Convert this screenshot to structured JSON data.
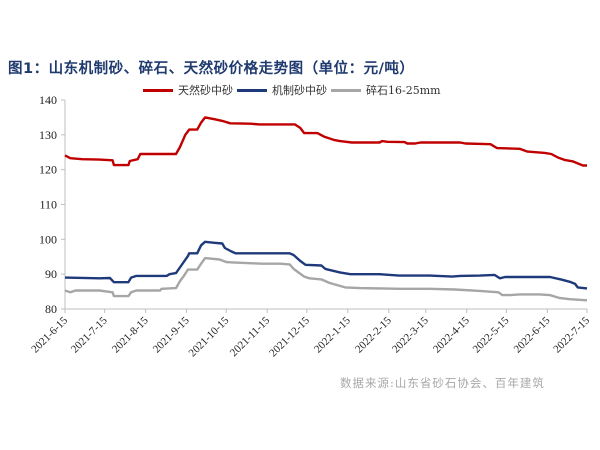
{
  "title": "图1：山东机制砂、碎石、天然砂价格走势图（单位：元/吨）",
  "source": "数据来源:山东省砂石协会、百年建筑",
  "colors": {
    "title": "#1f3a6e",
    "natural_sand": "#c00000",
    "machine_sand": "#1f3a7a",
    "gravel": "#a6a6a6",
    "axis": "#bfbfbf"
  },
  "legend": [
    {
      "label": "天然砂中砂",
      "color": "#c00000"
    },
    {
      "label": "机制砂中砂",
      "color": "#1f3a7a"
    },
    {
      "label": "碎石16-25mm",
      "color": "#a6a6a6"
    }
  ],
  "chart_data": {
    "type": "line",
    "title": "图1：山东机制砂、碎石、天然砂价格走势图（单位：元/吨）",
    "xlabel": "",
    "ylabel": "元/吨",
    "ylim": [
      80,
      140
    ],
    "yticks": [
      80,
      90,
      100,
      110,
      120,
      130,
      140
    ],
    "grid": false,
    "legend_position": "top",
    "x_start": "2021-6-15",
    "x_end": "2022-7-15",
    "x_days_total": 395,
    "xticks": [
      {
        "label": "2021-6-15",
        "day": 0
      },
      {
        "label": "2021-7-15",
        "day": 30
      },
      {
        "label": "2021-8-15",
        "day": 61
      },
      {
        "label": "2021-9-15",
        "day": 92
      },
      {
        "label": "2021-10-15",
        "day": 122
      },
      {
        "label": "2021-11-15",
        "day": 153
      },
      {
        "label": "2021-12-15",
        "day": 183
      },
      {
        "label": "2022-1-15",
        "day": 214
      },
      {
        "label": "2022-2-15",
        "day": 245
      },
      {
        "label": "2022-3-15",
        "day": 273
      },
      {
        "label": "2022-4-15",
        "day": 304
      },
      {
        "label": "2022-5-15",
        "day": 334
      },
      {
        "label": "2022-6-15",
        "day": 365
      },
      {
        "label": "2022-7-15",
        "day": 395
      }
    ],
    "series": [
      {
        "name": "天然砂中砂",
        "color": "#c00000",
        "points": [
          [
            0,
            124.1
          ],
          [
            4,
            123.3
          ],
          [
            13,
            123.0
          ],
          [
            26,
            122.9
          ],
          [
            36,
            122.7
          ],
          [
            37,
            121.3
          ],
          [
            48,
            121.3
          ],
          [
            49,
            122.5
          ],
          [
            55,
            123.0
          ],
          [
            57,
            124.5
          ],
          [
            84,
            124.5
          ],
          [
            87,
            126.5
          ],
          [
            91,
            130.0
          ],
          [
            94,
            131.5
          ],
          [
            100,
            131.5
          ],
          [
            103,
            133.5
          ],
          [
            106,
            135.0
          ],
          [
            113,
            134.5
          ],
          [
            119,
            134.0
          ],
          [
            125,
            133.3
          ],
          [
            140,
            133.2
          ],
          [
            147,
            133.0
          ],
          [
            174,
            133.0
          ],
          [
            178,
            132.0
          ],
          [
            181,
            130.5
          ],
          [
            191,
            130.5
          ],
          [
            196,
            129.5
          ],
          [
            204,
            128.5
          ],
          [
            208,
            128.2
          ],
          [
            217,
            127.8
          ],
          [
            238,
            127.8
          ],
          [
            240,
            128.2
          ],
          [
            244,
            128.0
          ],
          [
            257,
            127.9
          ],
          [
            259,
            127.5
          ],
          [
            265,
            127.5
          ],
          [
            269,
            127.8
          ],
          [
            299,
            127.8
          ],
          [
            303,
            127.5
          ],
          [
            322,
            127.3
          ],
          [
            327,
            126.2
          ],
          [
            344,
            126.0
          ],
          [
            350,
            125.2
          ],
          [
            363,
            124.8
          ],
          [
            368,
            124.5
          ],
          [
            373,
            123.5
          ],
          [
            378,
            122.8
          ],
          [
            384,
            122.4
          ],
          [
            388,
            121.8
          ],
          [
            392,
            121.2
          ],
          [
            395,
            121.2
          ]
        ]
      },
      {
        "name": "机制砂中砂",
        "color": "#1f3a7a",
        "points": [
          [
            0,
            89.0
          ],
          [
            26,
            88.8
          ],
          [
            34,
            88.9
          ],
          [
            37,
            87.7
          ],
          [
            48,
            87.7
          ],
          [
            50,
            89.0
          ],
          [
            54,
            89.5
          ],
          [
            77,
            89.5
          ],
          [
            79,
            90.0
          ],
          [
            84,
            90.3
          ],
          [
            88,
            92.5
          ],
          [
            93,
            95.2
          ],
          [
            94,
            96.0
          ],
          [
            100,
            96.0
          ],
          [
            103,
            98.3
          ],
          [
            106,
            99.3
          ],
          [
            113,
            99.0
          ],
          [
            119,
            98.8
          ],
          [
            121,
            97.5
          ],
          [
            126,
            96.5
          ],
          [
            129,
            96.0
          ],
          [
            155,
            96.0
          ],
          [
            170,
            96.0
          ],
          [
            173,
            95.5
          ],
          [
            178,
            93.8
          ],
          [
            182,
            92.7
          ],
          [
            194,
            92.5
          ],
          [
            197,
            91.5
          ],
          [
            208,
            90.5
          ],
          [
            216,
            90.0
          ],
          [
            238,
            90.0
          ],
          [
            253,
            89.6
          ],
          [
            276,
            89.6
          ],
          [
            293,
            89.3
          ],
          [
            299,
            89.5
          ],
          [
            314,
            89.6
          ],
          [
            325,
            89.8
          ],
          [
            329,
            88.8
          ],
          [
            333,
            89.2
          ],
          [
            367,
            89.2
          ],
          [
            376,
            88.4
          ],
          [
            382,
            87.8
          ],
          [
            386,
            87.2
          ],
          [
            388,
            86.2
          ],
          [
            395,
            85.9
          ]
        ]
      },
      {
        "name": "碎石16-25mm",
        "color": "#a6a6a6",
        "points": [
          [
            0,
            85.3
          ],
          [
            4,
            84.8
          ],
          [
            8,
            85.3
          ],
          [
            26,
            85.3
          ],
          [
            36,
            84.8
          ],
          [
            37,
            83.7
          ],
          [
            48,
            83.7
          ],
          [
            50,
            84.8
          ],
          [
            54,
            85.3
          ],
          [
            72,
            85.3
          ],
          [
            73,
            85.8
          ],
          [
            84,
            86.0
          ],
          [
            87,
            88.0
          ],
          [
            90,
            89.5
          ],
          [
            93,
            91.3
          ],
          [
            100,
            91.3
          ],
          [
            103,
            93.0
          ],
          [
            106,
            94.6
          ],
          [
            117,
            94.2
          ],
          [
            122,
            93.5
          ],
          [
            125,
            93.4
          ],
          [
            149,
            93.0
          ],
          [
            163,
            93.0
          ],
          [
            170,
            92.8
          ],
          [
            173,
            91.5
          ],
          [
            181,
            89.3
          ],
          [
            185,
            88.8
          ],
          [
            194,
            88.5
          ],
          [
            200,
            87.5
          ],
          [
            212,
            86.2
          ],
          [
            223,
            86.0
          ],
          [
            253,
            85.8
          ],
          [
            276,
            85.8
          ],
          [
            295,
            85.6
          ],
          [
            314,
            85.2
          ],
          [
            328,
            84.8
          ],
          [
            331,
            84.0
          ],
          [
            337,
            84.0
          ],
          [
            344,
            84.2
          ],
          [
            359,
            84.2
          ],
          [
            367,
            84.0
          ],
          [
            374,
            83.2
          ],
          [
            382,
            82.8
          ],
          [
            395,
            82.5
          ]
        ]
      }
    ]
  }
}
